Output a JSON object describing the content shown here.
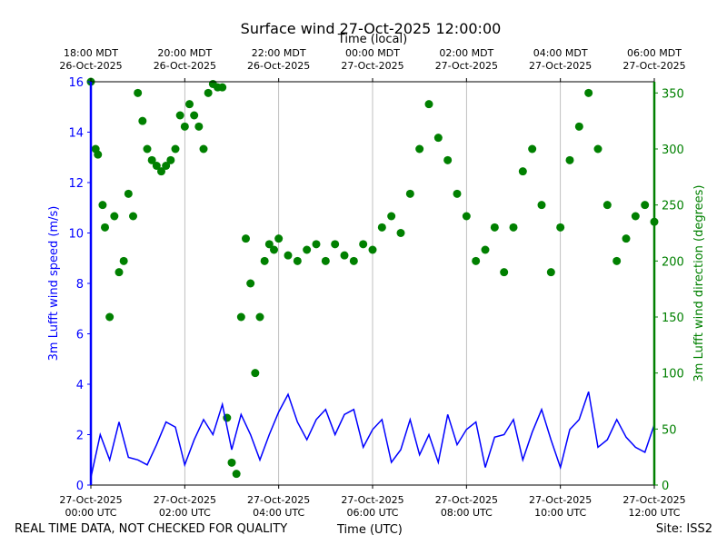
{
  "chart_data": {
    "type": "line+scatter",
    "title": "Surface wind 27-Oct-2025 12:00:00",
    "top_axis_label": "Time (local)",
    "xlabel": "Time (UTC)",
    "ylabel_left": "3m Lufft wind speed (m/s)",
    "ylabel_right": "3m Lufft wind direction (degrees)",
    "x_range_hours": [
      0,
      12
    ],
    "ylim_left": [
      0,
      16
    ],
    "ylim_right": [
      0,
      360
    ],
    "yticks_left": [
      0,
      2,
      4,
      6,
      8,
      10,
      12,
      14,
      16
    ],
    "yticks_right": [
      0,
      50,
      100,
      150,
      200,
      250,
      300,
      350
    ],
    "bottom_ticks": [
      {
        "hour": 0,
        "line1": "27-Oct-2025",
        "line2": "00:00 UTC"
      },
      {
        "hour": 2,
        "line1": "27-Oct-2025",
        "line2": "02:00 UTC"
      },
      {
        "hour": 4,
        "line1": "27-Oct-2025",
        "line2": "04:00 UTC"
      },
      {
        "hour": 6,
        "line1": "27-Oct-2025",
        "line2": "06:00 UTC"
      },
      {
        "hour": 8,
        "line1": "27-Oct-2025",
        "line2": "08:00 UTC"
      },
      {
        "hour": 10,
        "line1": "27-Oct-2025",
        "line2": "10:00 UTC"
      },
      {
        "hour": 12,
        "line1": "27-Oct-2025",
        "line2": "12:00 UTC"
      }
    ],
    "top_ticks": [
      {
        "hour": 0,
        "line1": "18:00 MDT",
        "line2": "26-Oct-2025"
      },
      {
        "hour": 2,
        "line1": "20:00 MDT",
        "line2": "26-Oct-2025"
      },
      {
        "hour": 4,
        "line1": "22:00 MDT",
        "line2": "26-Oct-2025"
      },
      {
        "hour": 6,
        "line1": "00:00 MDT",
        "line2": "27-Oct-2025"
      },
      {
        "hour": 8,
        "line1": "02:00 MDT",
        "line2": "27-Oct-2025"
      },
      {
        "hour": 10,
        "line1": "04:00 MDT",
        "line2": "27-Oct-2025"
      },
      {
        "hour": 12,
        "line1": "06:00 MDT",
        "line2": "27-Oct-2025"
      }
    ],
    "series": [
      {
        "name": "3m Lufft wind speed (m/s)",
        "kind": "line",
        "axis": "left",
        "color": "#0000ff",
        "x_hours": [
          0.0,
          0.2,
          0.4,
          0.6,
          0.8,
          1.0,
          1.2,
          1.4,
          1.6,
          1.8,
          2.0,
          2.2,
          2.4,
          2.6,
          2.8,
          3.0,
          3.2,
          3.4,
          3.6,
          3.8,
          4.0,
          4.2,
          4.4,
          4.6,
          4.8,
          5.0,
          5.2,
          5.4,
          5.6,
          5.8,
          6.0,
          6.2,
          6.4,
          6.6,
          6.8,
          7.0,
          7.2,
          7.4,
          7.6,
          7.8,
          8.0,
          8.2,
          8.4,
          8.6,
          8.8,
          9.0,
          9.2,
          9.4,
          9.6,
          9.8,
          10.0,
          10.2,
          10.4,
          10.6,
          10.8,
          11.0,
          11.2,
          11.4,
          11.6,
          11.8,
          12.0
        ],
        "values": [
          0.3,
          2.0,
          1.0,
          2.5,
          1.1,
          1.0,
          0.8,
          1.6,
          2.5,
          2.3,
          0.8,
          1.8,
          2.6,
          2.0,
          3.2,
          1.4,
          2.8,
          2.0,
          1.0,
          2.0,
          2.9,
          3.6,
          2.5,
          1.8,
          2.6,
          3.0,
          2.0,
          2.8,
          3.0,
          1.5,
          2.2,
          2.6,
          0.9,
          1.4,
          2.6,
          1.2,
          2.0,
          0.9,
          2.8,
          1.6,
          2.2,
          2.5,
          0.7,
          1.9,
          2.0,
          2.6,
          1.0,
          2.1,
          3.0,
          1.8,
          0.7,
          2.2,
          2.6,
          3.7,
          1.5,
          1.8,
          2.6,
          1.9,
          1.5,
          1.3,
          2.4
        ]
      },
      {
        "name": "3m Lufft wind direction (degrees)",
        "kind": "scatter",
        "axis": "right",
        "color": "#008000",
        "x_hours": [
          0.0,
          0.1,
          0.15,
          0.25,
          0.3,
          0.4,
          0.5,
          0.6,
          0.7,
          0.8,
          0.9,
          1.0,
          1.1,
          1.2,
          1.3,
          1.4,
          1.5,
          1.6,
          1.7,
          1.8,
          1.9,
          2.0,
          2.1,
          2.2,
          2.3,
          2.4,
          2.5,
          2.6,
          2.7,
          2.8,
          2.9,
          3.0,
          3.1,
          3.2,
          3.3,
          3.4,
          3.5,
          3.6,
          3.7,
          3.8,
          3.9,
          4.0,
          4.2,
          4.4,
          4.6,
          4.8,
          5.0,
          5.2,
          5.4,
          5.6,
          5.8,
          6.0,
          6.2,
          6.4,
          6.6,
          6.8,
          7.0,
          7.2,
          7.4,
          7.6,
          7.8,
          8.0,
          8.2,
          8.4,
          8.6,
          8.8,
          9.0,
          9.2,
          9.4,
          9.6,
          9.8,
          10.0,
          10.2,
          10.4,
          10.6,
          10.8,
          11.0,
          11.2,
          11.4,
          11.6,
          11.8,
          12.0
        ],
        "values": [
          360,
          300,
          295,
          250,
          230,
          150,
          240,
          190,
          200,
          260,
          240,
          350,
          325,
          300,
          290,
          285,
          280,
          285,
          290,
          300,
          330,
          320,
          340,
          330,
          320,
          300,
          350,
          358,
          355,
          355,
          60,
          20,
          10,
          150,
          220,
          180,
          100,
          150,
          200,
          215,
          210,
          220,
          205,
          200,
          210,
          215,
          200,
          215,
          205,
          200,
          215,
          210,
          230,
          240,
          225,
          260,
          300,
          340,
          310,
          290,
          260,
          240,
          200,
          210,
          230,
          190,
          230,
          280,
          300,
          250,
          190,
          230,
          290,
          320,
          350,
          300,
          250,
          200,
          220,
          240,
          250,
          235
        ]
      }
    ]
  },
  "footer": {
    "left": "REAL TIME DATA, NOT CHECKED FOR QUALITY",
    "center": "Time (UTC)",
    "right": "Site: ISS2"
  }
}
